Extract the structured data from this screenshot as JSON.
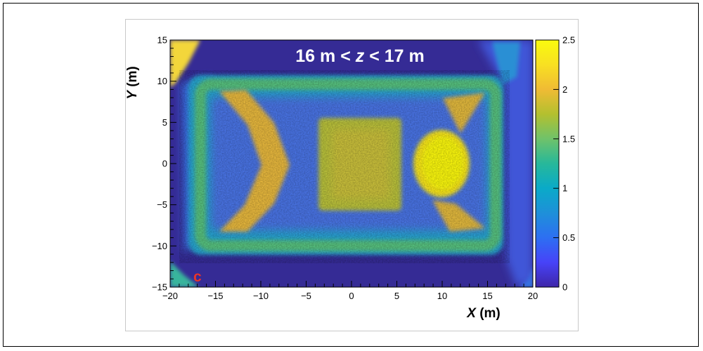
{
  "chart_data": {
    "type": "heatmap",
    "title_parts": [
      "16 m < ",
      "z",
      " < 17 m"
    ],
    "panel_label": "c",
    "xlabel_var": "X",
    "xlabel_unit": " (m)",
    "ylabel_var": "Y",
    "ylabel_unit": " (m)",
    "xlim": [
      -20,
      20
    ],
    "ylim": [
      -15,
      15
    ],
    "x_ticks": [
      "−20",
      "−15",
      "−10",
      "−5",
      "0",
      "5",
      "10",
      "15",
      "20"
    ],
    "x_tick_values": [
      -20,
      -15,
      -10,
      -5,
      0,
      5,
      10,
      15,
      20
    ],
    "y_ticks": [
      "15",
      "10",
      "5",
      "0",
      "−5",
      "−10",
      "−15"
    ],
    "y_tick_values": [
      15,
      10,
      5,
      0,
      -5,
      -10,
      -15
    ],
    "colorbar": {
      "range": [
        0,
        2.5
      ],
      "ticks": [
        "0",
        "0.5",
        "1",
        "1.5",
        "2",
        "2.5"
      ],
      "tick_values": [
        0,
        0.5,
        1,
        1.5,
        2,
        2.5
      ],
      "colormap": [
        "#3e26a8",
        "#4743f8",
        "#2d6ff2",
        "#1e90d9",
        "#0aaac8",
        "#27b89a",
        "#6fc26a",
        "#b3c02f",
        "#f0bb34",
        "#f8e022",
        "#f9fb0e"
      ]
    },
    "colors": {
      "background": "#342a93",
      "panel_label": "#e8332a"
    }
  }
}
